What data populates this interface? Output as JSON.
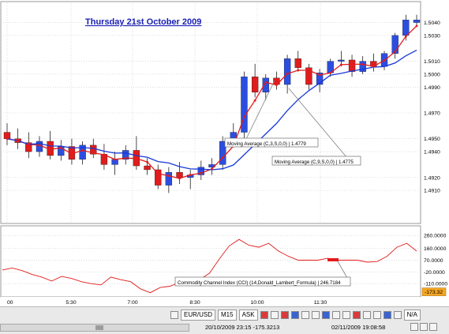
{
  "title": "Thursday 21st October 2009",
  "chart_data": {
    "type": "candlestick",
    "title": "Thursday 21st October 2009",
    "x_ticks": [
      "00",
      "5:30",
      "7:00",
      "8:30",
      "10:00",
      "11:30"
    ],
    "price_axis": {
      "ylim": [
        1.4885,
        1.5055
      ],
      "ticks": [
        1.504,
        1.503,
        1.501,
        1.5,
        1.499,
        1.497,
        1.495,
        1.494,
        1.492,
        1.491
      ]
    },
    "candles": [
      {
        "o": 1.4955,
        "h": 1.4962,
        "l": 1.4945,
        "c": 1.495,
        "dir": "down"
      },
      {
        "o": 1.495,
        "h": 1.4958,
        "l": 1.4942,
        "c": 1.4947,
        "dir": "down"
      },
      {
        "o": 1.4947,
        "h": 1.4955,
        "l": 1.4935,
        "c": 1.494,
        "dir": "down"
      },
      {
        "o": 1.494,
        "h": 1.4952,
        "l": 1.4936,
        "c": 1.4948,
        "dir": "up"
      },
      {
        "o": 1.4948,
        "h": 1.4956,
        "l": 1.4934,
        "c": 1.4937,
        "dir": "down"
      },
      {
        "o": 1.4937,
        "h": 1.4949,
        "l": 1.4933,
        "c": 1.4944,
        "dir": "up"
      },
      {
        "o": 1.4944,
        "h": 1.495,
        "l": 1.493,
        "c": 1.4934,
        "dir": "down"
      },
      {
        "o": 1.4934,
        "h": 1.4948,
        "l": 1.493,
        "c": 1.4945,
        "dir": "up"
      },
      {
        "o": 1.4945,
        "h": 1.495,
        "l": 1.4935,
        "c": 1.4938,
        "dir": "down"
      },
      {
        "o": 1.4938,
        "h": 1.4946,
        "l": 1.4926,
        "c": 1.493,
        "dir": "down"
      },
      {
        "o": 1.493,
        "h": 1.494,
        "l": 1.4922,
        "c": 1.4934,
        "dir": "up"
      },
      {
        "o": 1.4934,
        "h": 1.4945,
        "l": 1.493,
        "c": 1.4941,
        "dir": "up"
      },
      {
        "o": 1.4941,
        "h": 1.4952,
        "l": 1.4926,
        "c": 1.4929,
        "dir": "down"
      },
      {
        "o": 1.4929,
        "h": 1.4935,
        "l": 1.4922,
        "c": 1.4926,
        "dir": "down"
      },
      {
        "o": 1.4926,
        "h": 1.493,
        "l": 1.4911,
        "c": 1.4914,
        "dir": "down"
      },
      {
        "o": 1.4914,
        "h": 1.4928,
        "l": 1.4908,
        "c": 1.4924,
        "dir": "up"
      },
      {
        "o": 1.4924,
        "h": 1.4932,
        "l": 1.4915,
        "c": 1.492,
        "dir": "down"
      },
      {
        "o": 1.492,
        "h": 1.4926,
        "l": 1.4911,
        "c": 1.4922,
        "dir": "up"
      },
      {
        "o": 1.4922,
        "h": 1.4933,
        "l": 1.4918,
        "c": 1.4928,
        "dir": "up"
      },
      {
        "o": 1.4928,
        "h": 1.4935,
        "l": 1.4922,
        "c": 1.493,
        "dir": "up"
      },
      {
        "o": 1.493,
        "h": 1.4952,
        "l": 1.4926,
        "c": 1.4948,
        "dir": "up"
      },
      {
        "o": 1.4948,
        "h": 1.4962,
        "l": 1.4945,
        "c": 1.4955,
        "dir": "up"
      },
      {
        "o": 1.4955,
        "h": 1.5002,
        "l": 1.495,
        "c": 1.4998,
        "dir": "up"
      },
      {
        "o": 1.4998,
        "h": 1.5008,
        "l": 1.4982,
        "c": 1.4986,
        "dir": "down"
      },
      {
        "o": 1.4986,
        "h": 1.5,
        "l": 1.498,
        "c": 1.4997,
        "dir": "up"
      },
      {
        "o": 1.4997,
        "h": 1.5002,
        "l": 1.4988,
        "c": 1.4992,
        "dir": "down"
      },
      {
        "o": 1.4992,
        "h": 1.5015,
        "l": 1.4985,
        "c": 1.5012,
        "dir": "up"
      },
      {
        "o": 1.5012,
        "h": 1.5018,
        "l": 1.5002,
        "c": 1.5005,
        "dir": "down"
      },
      {
        "o": 1.5005,
        "h": 1.5008,
        "l": 1.4988,
        "c": 1.4992,
        "dir": "down"
      },
      {
        "o": 1.4992,
        "h": 1.5004,
        "l": 1.4986,
        "c": 1.5001,
        "dir": "up"
      },
      {
        "o": 1.5001,
        "h": 1.5012,
        "l": 1.4998,
        "c": 1.501,
        "dir": "up"
      },
      {
        "o": 1.501,
        "h": 1.5018,
        "l": 1.5006,
        "c": 1.5011,
        "dir": "up"
      },
      {
        "o": 1.5011,
        "h": 1.5015,
        "l": 1.4998,
        "c": 1.5002,
        "dir": "down"
      },
      {
        "o": 1.5002,
        "h": 1.5014,
        "l": 1.5,
        "c": 1.501,
        "dir": "up"
      },
      {
        "o": 1.501,
        "h": 1.5016,
        "l": 1.5002,
        "c": 1.5006,
        "dir": "down"
      },
      {
        "o": 1.5006,
        "h": 1.5018,
        "l": 1.5003,
        "c": 1.5016,
        "dir": "up"
      },
      {
        "o": 1.5016,
        "h": 1.5032,
        "l": 1.5012,
        "c": 1.503,
        "dir": "up"
      },
      {
        "o": 1.503,
        "h": 1.5046,
        "l": 1.5026,
        "c": 1.5042,
        "dir": "up"
      },
      {
        "o": 1.5042,
        "h": 1.5046,
        "l": 1.5038,
        "c": 1.504,
        "dir": "up"
      }
    ],
    "series": [
      {
        "name": "Moving Average (C,3,S,0,0)",
        "color": "#e21b1b"
      },
      {
        "name": "Moving Average (C,9,S,0,0)",
        "color": "#1838d8"
      }
    ],
    "annotations": [
      {
        "text": "Moving Average (C,3,S,0,0) | 1.4779"
      },
      {
        "text": "Moving Average (C,9,S,0,0) | 1.4775"
      }
    ],
    "indicator": {
      "label": "Commodity Channel Index  (CCI) (14,Donald_Lambert_Formula) | 246.7184",
      "ylim": [
        -200,
        310
      ],
      "ticks": [
        "260.0000",
        "160.0000",
        "70.0000",
        "-20.0000",
        "-110.0000",
        "-173.32"
      ],
      "current_value": "-173.32",
      "color": "#e21b1b",
      "values": [
        -5,
        10,
        -10,
        -40,
        -60,
        -90,
        -55,
        -70,
        -95,
        -110,
        -120,
        -60,
        -80,
        -95,
        -150,
        -180,
        -140,
        -130,
        -100,
        -115,
        -80,
        -30,
        80,
        180,
        230,
        185,
        170,
        200,
        140,
        100,
        70,
        70,
        70,
        85,
        70,
        70,
        70,
        55,
        60,
        100,
        170,
        200,
        140
      ]
    }
  },
  "toolbar": {
    "symbol": "EUR/USD",
    "timeframe": "M15",
    "price_type": "ASK",
    "na": "N/A",
    "status_start": "20/10/2009 23:15  -175.3213",
    "status_end": "02/11/2009 19:08:58"
  }
}
